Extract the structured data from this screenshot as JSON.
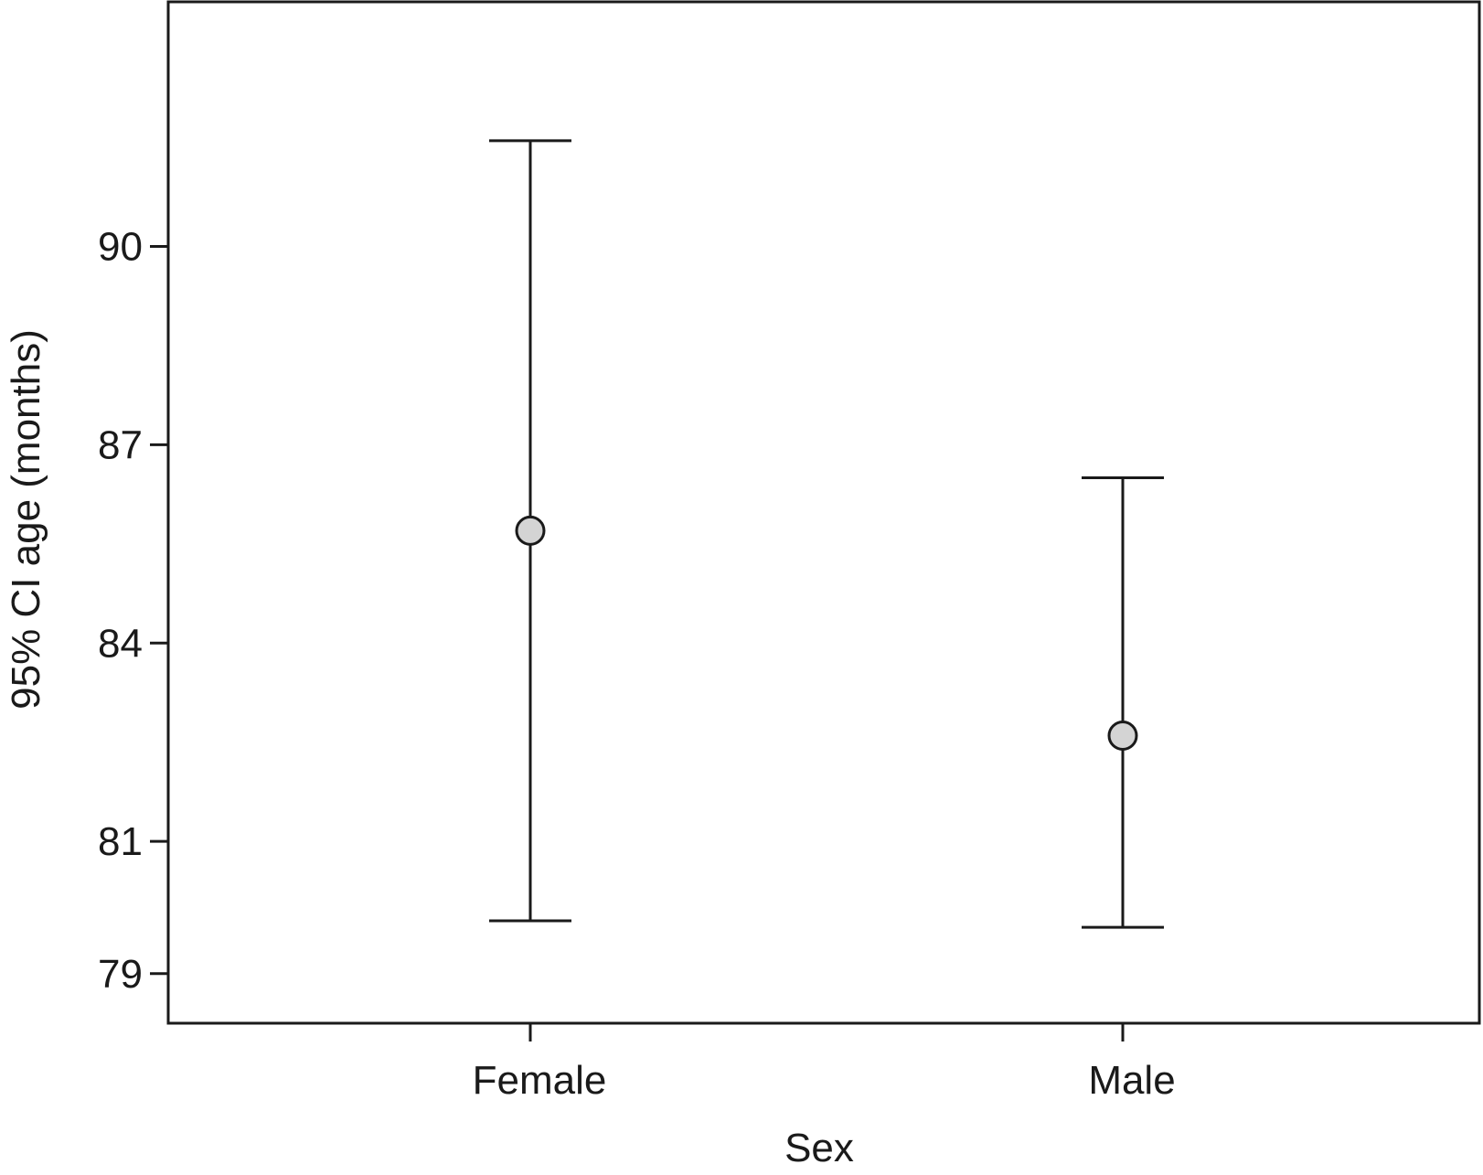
{
  "chart_data": {
    "type": "errorbar",
    "xlabel": "Sex",
    "ylabel": "95% CI age (months)",
    "categories": [
      "Female",
      "Male"
    ],
    "points": [
      {
        "category": "Female",
        "mean": 85.7,
        "lower": 79.8,
        "upper": 91.6
      },
      {
        "category": "Male",
        "mean": 82.6,
        "lower": 79.7,
        "upper": 86.5
      }
    ],
    "yticks": [
      79,
      81,
      84,
      87,
      90
    ],
    "ylim": [
      78.25,
      93.7
    ],
    "grid": false,
    "marker_fill": "#d4d4d4",
    "line_color": "#1a1a1a"
  }
}
